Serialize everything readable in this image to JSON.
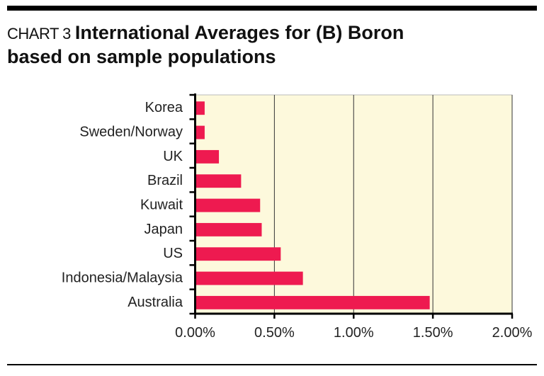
{
  "header": {
    "chart_number": "CHART 3",
    "title_line1": "International Averages for (B) Boron",
    "title_line2": "based on sample populations"
  },
  "chart_data": {
    "type": "bar",
    "orientation": "horizontal",
    "title": "International Averages for (B) Boron based on sample populations",
    "categories": [
      "Korea",
      "Sweden/Norway",
      "UK",
      "Brazil",
      "Kuwait",
      "Japan",
      "US",
      "Indonesia/Malaysia",
      "Australia"
    ],
    "values": [
      0.06,
      0.06,
      0.15,
      0.29,
      0.41,
      0.42,
      0.54,
      0.68,
      1.48
    ],
    "unit": "%",
    "xlim": [
      0,
      2.0
    ],
    "xticks": [
      "0.00%",
      "0.50%",
      "1.00%",
      "1.50%",
      "2.00%"
    ],
    "grid": "vertical",
    "colors": {
      "bar": "#ee1a50",
      "plot_background": "#fdf9dc"
    }
  }
}
